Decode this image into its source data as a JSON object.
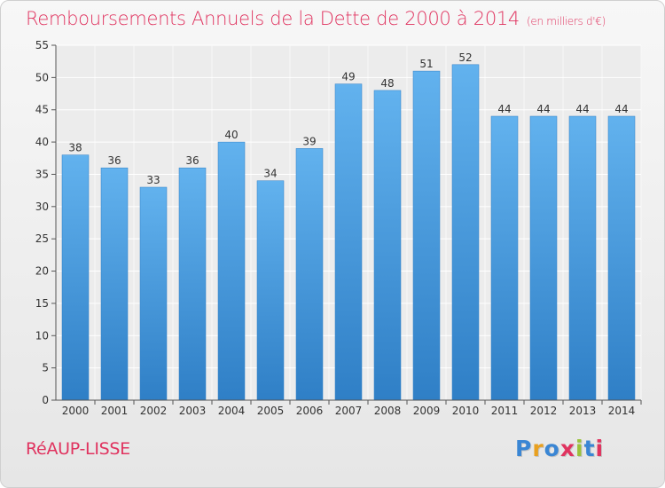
{
  "title": "Remboursements Annuels de la Dette de 2000 à 2014",
  "unit_note": "(en milliers d'€)",
  "commune": "RéAUP-LISSE",
  "logo": {
    "text": "Proxiti",
    "colors": [
      "#3a86d4",
      "#e8a020",
      "#3a86d4",
      "#e0335f",
      "#9bc23a",
      "#3a86d4",
      "#e0335f"
    ]
  },
  "colors": {
    "bar": "#3a8fd8",
    "bar_light": "#5fb0ec",
    "title": "#e0335f",
    "grid": "#ffffff",
    "axis": "#555555"
  },
  "chart_data": {
    "type": "bar",
    "title": "Remboursements Annuels de la Dette de 2000 à 2014",
    "xlabel": "",
    "ylabel": "",
    "categories": [
      "2000",
      "2001",
      "2002",
      "2003",
      "2004",
      "2005",
      "2006",
      "2007",
      "2008",
      "2009",
      "2010",
      "2011",
      "2012",
      "2013",
      "2014"
    ],
    "values": [
      38,
      36,
      33,
      36,
      40,
      34,
      39,
      49,
      48,
      51,
      52,
      44,
      44,
      44,
      44
    ],
    "ylim": [
      0,
      55
    ],
    "yticks": [
      0,
      5,
      10,
      15,
      20,
      25,
      30,
      35,
      40,
      45,
      50,
      55
    ],
    "grid": true,
    "data_labels": true
  }
}
